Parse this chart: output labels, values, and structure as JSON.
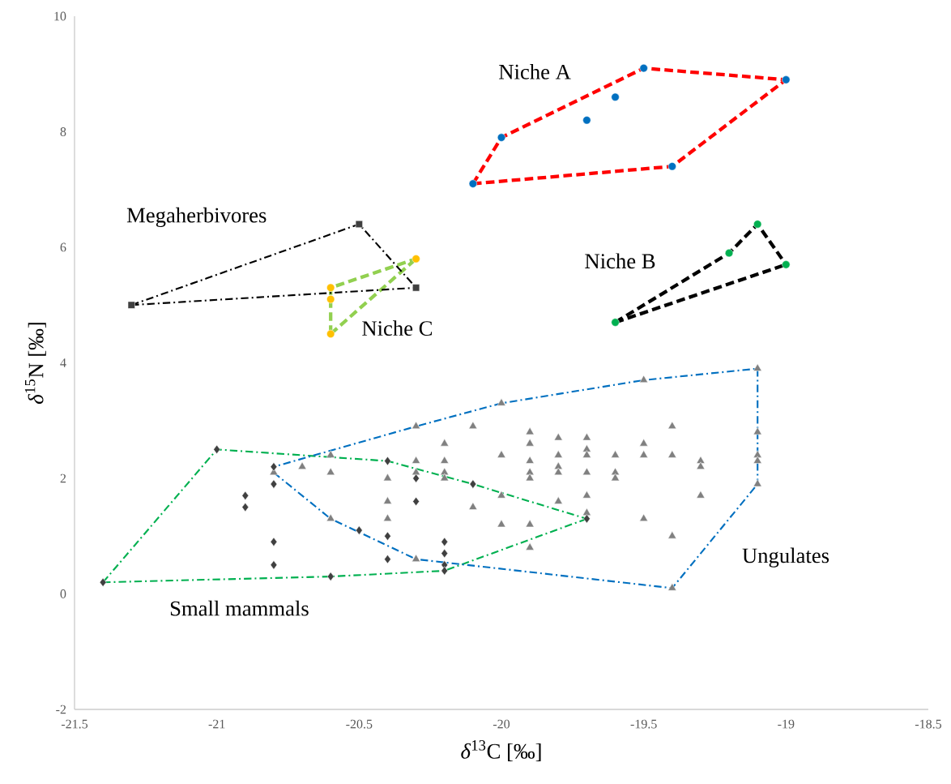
{
  "chart_data": {
    "type": "scatter",
    "xlabel": "*δ*$^{13}$C [‰]",
    "ylabel": "*δ*$^{15}$N [‰]",
    "xlim": [
      -21.5,
      -18.5
    ],
    "xticks": [
      -21.5,
      -21,
      -20.5,
      -20,
      -19.5,
      -19,
      -18.5
    ],
    "ylim": [
      -2,
      10
    ],
    "yticks": [
      -2,
      0,
      2,
      4,
      6,
      8,
      10
    ],
    "grid": false,
    "series": [
      {
        "type": "scatter",
        "marker": "circle",
        "color": "#0070c0",
        "x": [
          -20.1,
          -20.0,
          -19.7,
          -19.6,
          -19.5,
          -19.4,
          -19.0
        ],
        "values": [
          7.1,
          7.9,
          8.2,
          8.6,
          9.1,
          7.4,
          8.9
        ]
      },
      {
        "type": "scatter",
        "marker": "circle",
        "color": "#00b050",
        "x": [
          -19.6,
          -19.2,
          -19.1,
          -19.0
        ],
        "values": [
          4.7,
          5.9,
          6.4,
          5.7
        ]
      },
      {
        "type": "scatter",
        "marker": "square",
        "color": "#404040",
        "x": [
          -21.3,
          -20.5,
          -20.3
        ],
        "values": [
          5.0,
          6.4,
          5.3
        ]
      },
      {
        "type": "scatter",
        "marker": "circle",
        "color": "#ffc000",
        "x": [
          -20.6,
          -20.6,
          -20.6,
          -20.3
        ],
        "values": [
          5.3,
          5.1,
          4.5,
          5.8
        ]
      },
      {
        "type": "scatter",
        "marker": "triangle",
        "color": "#808080",
        "x": [
          -20.8,
          -20.7,
          -20.6,
          -20.6,
          -20.6,
          -20.4,
          -20.4,
          -20.4,
          -20.3,
          -20.3,
          -20.3,
          -20.3,
          -20.2,
          -20.2,
          -20.2,
          -20.2,
          -20.1,
          -20.1,
          -20.0,
          -20.0,
          -20.0,
          -20.0,
          -19.9,
          -19.9,
          -19.9,
          -19.9,
          -19.9,
          -19.9,
          -19.9,
          -19.8,
          -19.8,
          -19.8,
          -19.8,
          -19.8,
          -19.7,
          -19.7,
          -19.7,
          -19.7,
          -19.7,
          -19.7,
          -19.6,
          -19.6,
          -19.6,
          -19.5,
          -19.5,
          -19.5,
          -19.5,
          -19.4,
          -19.4,
          -19.4,
          -19.4,
          -19.3,
          -19.3,
          -19.3,
          -19.1,
          -19.1,
          -19.1,
          -19.1,
          -19.1
        ],
        "values": [
          2.1,
          2.2,
          2.4,
          2.1,
          1.3,
          2.0,
          1.6,
          1.3,
          2.9,
          2.3,
          2.1,
          0.6,
          2.6,
          2.3,
          2.1,
          2.0,
          2.9,
          1.5,
          3.3,
          2.4,
          1.7,
          1.2,
          2.8,
          2.6,
          2.3,
          2.1,
          2.0,
          1.2,
          0.8,
          2.7,
          2.4,
          2.2,
          2.1,
          1.6,
          2.7,
          2.5,
          2.4,
          2.1,
          1.7,
          1.4,
          2.4,
          2.1,
          2.0,
          3.7,
          2.6,
          2.4,
          1.3,
          2.9,
          2.4,
          1.0,
          0.1,
          2.3,
          2.2,
          1.7,
          3.9,
          2.8,
          2.4,
          2.3,
          1.9
        ]
      },
      {
        "type": "scatter",
        "marker": "diamond",
        "color": "#404040",
        "x": [
          -21.4,
          -21.0,
          -20.9,
          -20.9,
          -20.8,
          -20.8,
          -20.8,
          -20.8,
          -20.6,
          -20.5,
          -20.4,
          -20.4,
          -20.4,
          -20.3,
          -20.3,
          -20.2,
          -20.2,
          -20.2,
          -20.2,
          -20.1,
          -19.7
        ],
        "values": [
          0.2,
          2.5,
          1.7,
          1.5,
          2.2,
          1.9,
          0.9,
          0.5,
          0.3,
          1.1,
          2.3,
          1.0,
          0.6,
          2.0,
          1.6,
          0.9,
          0.7,
          0.5,
          0.4,
          1.9,
          1.3
        ]
      },
      {
        "type": "line",
        "marker": "none",
        "line_style": "dashed",
        "color": "#ff0000",
        "x": [
          -20.1,
          -20.0,
          -19.5,
          -19.0
        ],
        "values": [
          7.1,
          7.9,
          9.1,
          8.9
        ]
      },
      {
        "type": "line",
        "marker": "none",
        "line_style": "dashed",
        "color": "#ff0000",
        "x": [
          -20.1,
          -19.4,
          -19.0
        ],
        "values": [
          7.1,
          7.4,
          8.9
        ]
      },
      {
        "type": "line",
        "marker": "none",
        "line_style": "dashed",
        "color": "#000000",
        "x": [
          -19.6,
          -19.2,
          -19.1,
          -19.0
        ],
        "values": [
          4.7,
          5.9,
          6.4,
          5.7
        ]
      },
      {
        "type": "line",
        "marker": "none",
        "line_style": "dashed",
        "color": "#000000",
        "x": [
          -19.6,
          -19.0
        ],
        "values": [
          4.7,
          5.7
        ]
      },
      {
        "type": "line",
        "marker": "none",
        "line_style": "dashed",
        "color": "#92d050",
        "x": [
          -20.6,
          -20.6,
          -20.3
        ],
        "values": [
          4.5,
          5.3,
          5.8
        ]
      },
      {
        "type": "line",
        "marker": "none",
        "line_style": "dashed",
        "color": "#92d050",
        "x": [
          -20.6,
          -20.3
        ],
        "values": [
          4.5,
          5.8
        ]
      },
      {
        "type": "line",
        "marker": "none",
        "line_style": "dashdot",
        "color": "#000000",
        "x": [
          -21.3,
          -20.5,
          -20.3
        ],
        "values": [
          5.0,
          6.4,
          5.3
        ]
      },
      {
        "type": "line",
        "marker": "none",
        "line_style": "dashdot",
        "color": "#000000",
        "x": [
          -21.3,
          -20.3
        ],
        "values": [
          5.0,
          5.3
        ]
      },
      {
        "type": "line",
        "marker": "none",
        "line_style": "dashdot",
        "color": "#00b050",
        "x": [
          -21.4,
          -21.0,
          -20.4,
          -20.1,
          -19.7
        ],
        "values": [
          0.2,
          2.5,
          2.3,
          1.9,
          1.3
        ]
      },
      {
        "type": "line",
        "marker": "none",
        "line_style": "dashdot",
        "color": "#00b050",
        "x": [
          -21.4,
          -20.6,
          -20.2,
          -19.7
        ],
        "values": [
          0.2,
          0.3,
          0.4,
          1.3
        ]
      },
      {
        "type": "line",
        "marker": "none",
        "line_style": "dashdot",
        "color": "#0070c0",
        "x": [
          -20.8,
          -20.8,
          -20.3,
          -20.0,
          -19.5,
          -19.1,
          -19.1
        ],
        "values": [
          2.1,
          2.2,
          2.9,
          3.3,
          3.7,
          3.9,
          1.9
        ]
      },
      {
        "type": "line",
        "marker": "none",
        "line_style": "dashdot",
        "color": "#0070c0",
        "x": [
          -20.8,
          -20.6,
          -20.3,
          -19.4,
          -19.1
        ],
        "values": [
          2.1,
          1.3,
          0.6,
          0.1,
          1.9
        ]
      }
    ],
    "annotations": [
      "Niche A",
      "Megaherbivores",
      "Niche B",
      "Niche C",
      "Ungulates",
      "Small mammals"
    ]
  }
}
